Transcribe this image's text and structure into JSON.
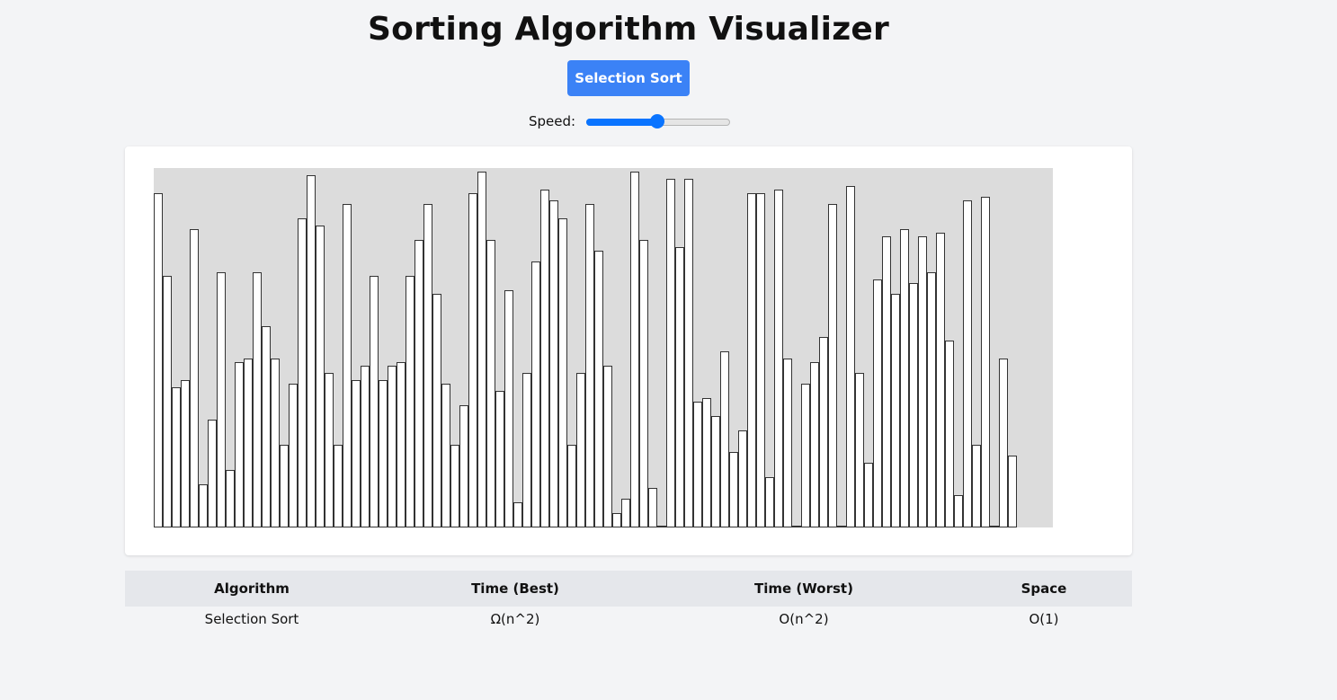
{
  "header": {
    "title": "Sorting Algorithm Visualizer"
  },
  "controls": {
    "algorithm_button_label": "Selection Sort",
    "speed_label": "Speed:",
    "speed_value_fraction": 0.5
  },
  "colors": {
    "accent": "#3b82f6",
    "slider": "#0a74ff",
    "bar_fill": "#ffffff",
    "bar_border": "#333333",
    "area_bg": "#dcdcdc"
  },
  "bars": {
    "max_value": 100,
    "values": [
      93,
      70,
      39,
      41,
      83,
      12,
      30,
      71,
      16,
      46,
      47,
      71,
      56,
      47,
      23,
      40,
      86,
      98,
      84,
      43,
      23,
      90,
      41,
      45,
      70,
      41,
      45,
      46,
      70,
      80,
      90,
      65,
      40,
      23,
      34,
      93,
      99,
      80,
      38,
      66,
      7,
      43,
      74,
      94,
      91,
      86,
      23,
      43,
      90,
      77,
      45,
      4,
      8,
      99,
      80,
      11,
      0,
      97,
      78,
      97,
      35,
      36,
      31,
      49,
      21,
      27,
      93,
      93,
      14,
      94,
      47,
      0,
      40,
      46,
      53,
      90,
      0,
      95,
      43,
      18,
      69,
      81,
      65,
      83,
      68,
      81,
      71,
      82,
      52,
      9,
      91,
      23,
      92,
      0,
      47,
      20
    ]
  },
  "table": {
    "headers": [
      "Algorithm",
      "Time (Best)",
      "Time (Worst)",
      "Space"
    ],
    "rows": [
      [
        "Selection Sort",
        "Ω(n^2)",
        "O(n^2)",
        "O(1)"
      ]
    ]
  }
}
